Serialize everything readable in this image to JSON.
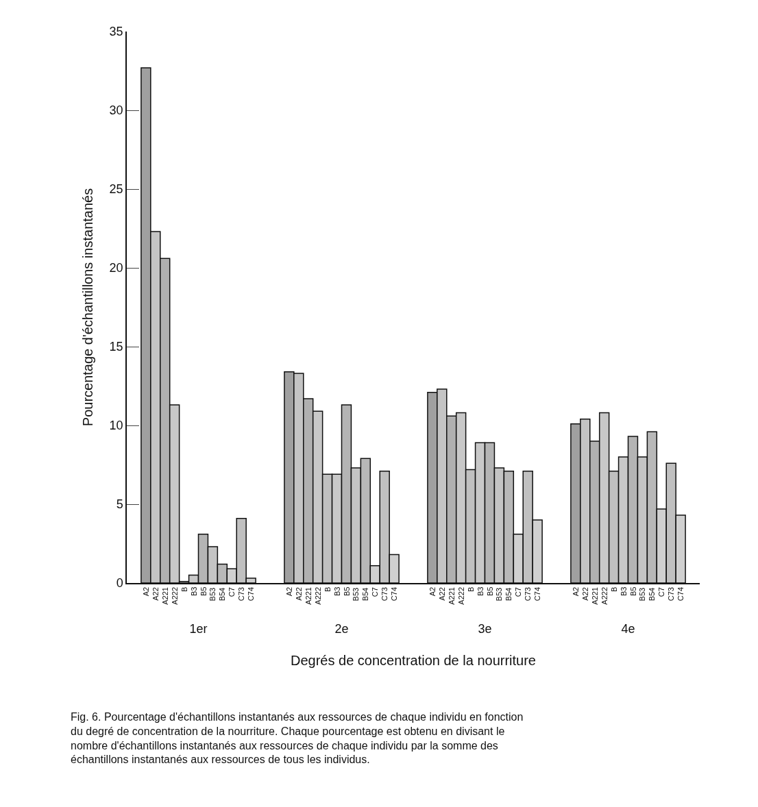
{
  "chart_data": {
    "type": "bar",
    "xlabel": "Degrés de concentration de la nourriture",
    "ylabel": "Pourcentage d'échantillons instantanés",
    "categories": [
      "1er",
      "2e",
      "3e",
      "4e"
    ],
    "series": [
      {
        "name": "A2",
        "color": "#a0a0a0",
        "values": [
          32.7,
          13.4,
          12.1,
          10.1
        ]
      },
      {
        "name": "A22",
        "color": "#c4c4c4",
        "values": [
          22.3,
          13.3,
          12.3,
          10.4
        ]
      },
      {
        "name": "A221",
        "color": "#b0b0b0",
        "values": [
          20.6,
          11.7,
          10.6,
          9.0
        ]
      },
      {
        "name": "A222",
        "color": "#c8c8c8",
        "values": [
          11.3,
          10.9,
          10.8,
          10.8
        ]
      },
      {
        "name": "B",
        "color": "#c0c0c0",
        "values": [
          0.1,
          6.9,
          7.2,
          7.1
        ]
      },
      {
        "name": "B3",
        "color": "#c8c8c8",
        "values": [
          0.5,
          6.9,
          8.9,
          8.0
        ]
      },
      {
        "name": "B5",
        "color": "#b4b4b4",
        "values": [
          3.1,
          11.3,
          8.9,
          9.3
        ]
      },
      {
        "name": "B53",
        "color": "#c4c4c4",
        "values": [
          2.3,
          7.3,
          7.3,
          8.0
        ]
      },
      {
        "name": "B54",
        "color": "#b8b8b8",
        "values": [
          1.2,
          7.9,
          7.1,
          9.6
        ]
      },
      {
        "name": "C7",
        "color": "#d0d0d0",
        "values": [
          0.9,
          1.1,
          3.1,
          4.7
        ]
      },
      {
        "name": "C73",
        "color": "#c0c0c0",
        "values": [
          4.1,
          7.1,
          7.1,
          7.6
        ]
      },
      {
        "name": "C74",
        "color": "#d0d0d0",
        "values": [
          0.3,
          1.8,
          4.0,
          4.3
        ]
      }
    ],
    "ylim": [
      0,
      35
    ],
    "yticks": [
      0,
      5,
      10,
      15,
      20,
      25,
      30,
      35
    ],
    "grid": false,
    "legend": false,
    "annotations": [
      "Fig. 6. Pourcentage d'échantillons instantanés aux ressources de chaque individu en fonction du degré de concentration de la nourriture. Chaque pourcentage est obtenu en divisant le nombre d'échantillons instantanés aux ressources de chaque individu par la somme des échantillons instantanés aux ressources de tous les individus."
    ]
  }
}
